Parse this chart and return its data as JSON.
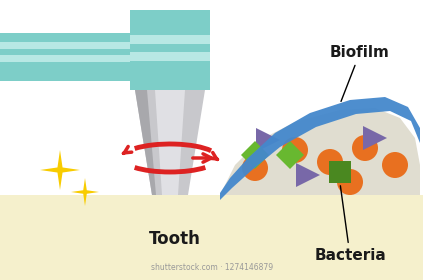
{
  "bg_color": "#ffffff",
  "gum_color": "#f5f0cc",
  "tooth_body_color": "#c8c8cc",
  "tooth_body_light": "#e0e0e4",
  "tooth_body_dark": "#a8a8ac",
  "handpiece_teal": "#7dcec8",
  "handpiece_teal_dark": "#6abeb8",
  "handpiece_stripe": "#b8e8e4",
  "biofilm_color": "#4488cc",
  "biofilm_area_color": "#e0ddd0",
  "arrow_color": "#dd2222",
  "sparkle_color": "#f8cc00",
  "orange_color": "#e87020",
  "purple_color": "#7868a8",
  "green_bright_color": "#68b830",
  "green_dark_color": "#4a8820",
  "label_color": "#1a1a1a",
  "watermark_color": "#999999",
  "label_tooth": "Tooth",
  "label_bacteria": "Bacteria",
  "label_biofilm": "Biofilm"
}
